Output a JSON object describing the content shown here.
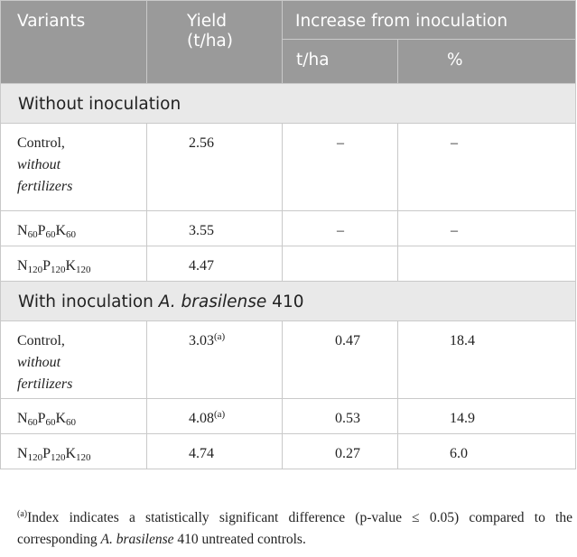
{
  "header": {
    "variants": "Variants",
    "yield": "Yield (t/ha)",
    "increase": "Increase from inoculation",
    "unit_tha": "t/ha",
    "unit_pct": "%"
  },
  "sections": {
    "without": "Without inoculation",
    "with_prefix": "With inoculation",
    "with_species": "A. brasilense",
    "with_strain": "410"
  },
  "variants": {
    "control_line1": "Control,",
    "control_line2": "without",
    "control_line3": "fertilizers",
    "npk60": {
      "n": "N",
      "n_sub": "60",
      "p": "P",
      "p_sub": "60",
      "k": "K",
      "k_sub": "60"
    },
    "npk120": {
      "n": "N",
      "n_sub": "120",
      "p": "P",
      "p_sub": "120",
      "k": "K",
      "k_sub": "120"
    }
  },
  "rows": {
    "wo_control": {
      "yield": "2.56",
      "inc_t": "–",
      "inc_pct": "–"
    },
    "wo_npk60": {
      "yield": "3.55",
      "inc_t": "–",
      "inc_pct": "–"
    },
    "wo_npk120": {
      "yield": "4.47",
      "inc_t": "",
      "inc_pct": ""
    },
    "w_control": {
      "yield": "3.03",
      "yield_mark": "(a)",
      "inc_t": "0.47",
      "inc_pct": "18.4"
    },
    "w_npk60": {
      "yield": "4.08",
      "yield_mark": "(a)",
      "inc_t": "0.53",
      "inc_pct": "14.9"
    },
    "w_npk120": {
      "yield": "4.74",
      "inc_t": "0.27",
      "inc_pct": "6.0"
    }
  },
  "footnote": {
    "mark": "(a)",
    "text_before": "Index indicates a statistically significant difference (p-value ≤ 0.05) compared to the corresponding",
    "species": "A. brasilense",
    "text_after": "410 untreated controls."
  }
}
